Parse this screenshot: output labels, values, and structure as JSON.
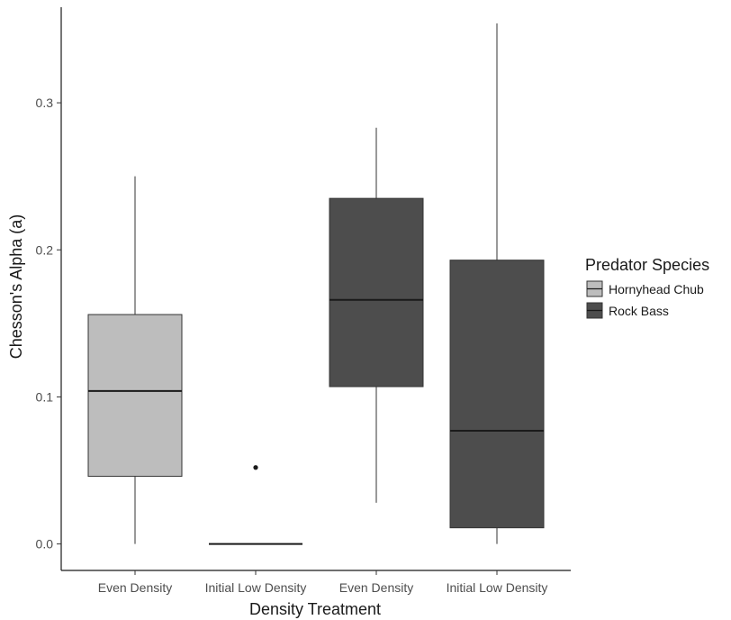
{
  "chart_data": {
    "type": "boxplot",
    "title": "",
    "xlabel": "Density Treatment",
    "ylabel": "Chesson's Alpha (a)",
    "ylim": [
      -0.018,
      0.365
    ],
    "y_ticks": [
      "0.0",
      "0.1",
      "0.2",
      "0.3"
    ],
    "y_tick_values": [
      0.0,
      0.1,
      0.2,
      0.3
    ],
    "grid": false,
    "legend": {
      "title": "Predator Species",
      "placement": "right",
      "entries": [
        {
          "name": "Hornyhead Chub",
          "color": "#bdbdbd"
        },
        {
          "name": "Rock Bass",
          "color": "#4d4d4d"
        }
      ]
    },
    "categories": [
      "Even Density",
      "Initial Low Density",
      "Even Density",
      "Initial Low Density"
    ],
    "boxes": [
      {
        "category": "Even Density",
        "species": "Hornyhead Chub",
        "min": 0.0,
        "q1": 0.046,
        "median": 0.104,
        "q3": 0.156,
        "max": 0.25,
        "outliers": []
      },
      {
        "category": "Initial Low Density",
        "species": "Hornyhead Chub",
        "min": 0.0,
        "q1": 0.0,
        "median": 0.0,
        "q3": 0.0,
        "max": 0.0,
        "outliers": [
          0.052
        ]
      },
      {
        "category": "Even Density",
        "species": "Rock Bass",
        "min": 0.028,
        "q1": 0.107,
        "median": 0.166,
        "q3": 0.235,
        "max": 0.283,
        "outliers": []
      },
      {
        "category": "Initial Low Density",
        "species": "Rock Bass",
        "min": 0.0,
        "q1": 0.011,
        "median": 0.077,
        "q3": 0.193,
        "max": 0.354,
        "outliers": []
      }
    ]
  }
}
